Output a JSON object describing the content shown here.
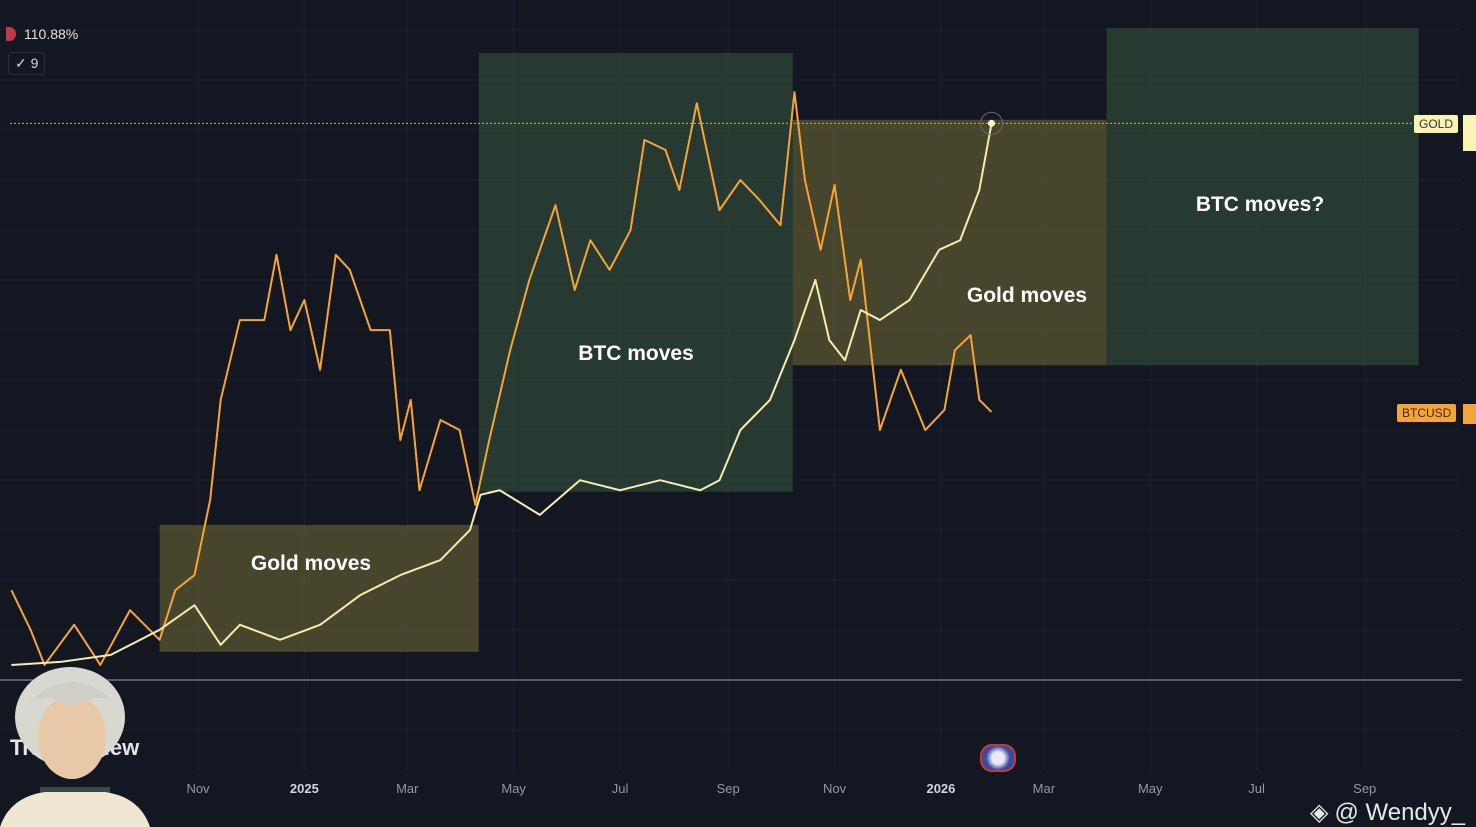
{
  "legend": {
    "percent_change": "110.88%",
    "indicator_count": "9"
  },
  "price_tags": {
    "gold": "GOLD",
    "btc": "BTCUSD"
  },
  "logo_text": "TradingView",
  "watermark": {
    "icon": "binance-logo-icon",
    "handle": "@ Wendyy_"
  },
  "colors": {
    "background": "#131722",
    "gold_line": "#f5ecb0",
    "btc_line": "#f7a437",
    "gold_box": "#5a5530",
    "btc_box": "#2f4a38"
  },
  "chart_data": {
    "type": "line",
    "yunit": "%",
    "grid": true,
    "x_ticks": [
      {
        "label": "Nov",
        "date": "2024-11-01",
        "bold": false
      },
      {
        "label": "2025",
        "date": "2025-01-01",
        "bold": true
      },
      {
        "label": "Mar",
        "date": "2025-03-01",
        "bold": false
      },
      {
        "label": "May",
        "date": "2025-05-01",
        "bold": false
      },
      {
        "label": "Jul",
        "date": "2025-07-01",
        "bold": false
      },
      {
        "label": "Sep",
        "date": "2025-09-01",
        "bold": false
      },
      {
        "label": "Nov",
        "date": "2025-11-01",
        "bold": false
      },
      {
        "label": "2026",
        "date": "2026-01-01",
        "bold": true
      },
      {
        "label": "Mar",
        "date": "2026-03-01",
        "bold": false
      },
      {
        "label": "May",
        "date": "2026-05-01",
        "bold": false
      },
      {
        "label": "Jul",
        "date": "2026-07-01",
        "bold": false
      },
      {
        "label": "Sep",
        "date": "2026-09-01",
        "bold": false
      }
    ],
    "series": [
      {
        "name": "GOLD",
        "color": "#f5ecb0",
        "points": [
          [
            "2024-07-17",
            3.0
          ],
          [
            "2024-08-14",
            3.6
          ],
          [
            "2024-09-12",
            5.0
          ],
          [
            "2024-10-10",
            10.0
          ],
          [
            "2024-10-30",
            14.9
          ],
          [
            "2024-11-14",
            7.0
          ],
          [
            "2024-11-25",
            11.0
          ],
          [
            "2024-12-18",
            8.0
          ],
          [
            "2025-01-10",
            11.0
          ],
          [
            "2025-02-02",
            16.9
          ],
          [
            "2025-02-25",
            20.9
          ],
          [
            "2025-03-20",
            23.9
          ],
          [
            "2025-04-06",
            29.9
          ],
          [
            "2025-04-12",
            36.9
          ],
          [
            "2025-04-23",
            37.8
          ],
          [
            "2025-05-16",
            32.9
          ],
          [
            "2025-06-08",
            39.8
          ],
          [
            "2025-07-01",
            37.8
          ],
          [
            "2025-07-24",
            39.8
          ],
          [
            "2025-08-16",
            37.8
          ],
          [
            "2025-08-27",
            39.8
          ],
          [
            "2025-09-08",
            49.8
          ],
          [
            "2025-09-25",
            55.8
          ],
          [
            "2025-10-09",
            67.7
          ],
          [
            "2025-10-21",
            79.7
          ],
          [
            "2025-10-29",
            67.7
          ],
          [
            "2025-11-07",
            63.7
          ],
          [
            "2025-11-16",
            73.7
          ],
          [
            "2025-11-27",
            71.7
          ],
          [
            "2025-12-14",
            75.7
          ],
          [
            "2025-12-31",
            85.7
          ],
          [
            "2026-01-12",
            87.6
          ],
          [
            "2026-01-23",
            97.6
          ],
          [
            "2026-01-30",
            110.88
          ]
        ]
      },
      {
        "name": "BTCUSD",
        "color": "#f7a437",
        "points": [
          [
            "2024-07-17",
            17.9
          ],
          [
            "2024-07-28",
            10.0
          ],
          [
            "2024-08-05",
            3.0
          ],
          [
            "2024-08-22",
            11.0
          ],
          [
            "2024-09-06",
            3.0
          ],
          [
            "2024-09-23",
            13.9
          ],
          [
            "2024-10-10",
            8.0
          ],
          [
            "2024-10-19",
            17.9
          ],
          [
            "2024-10-30",
            20.9
          ],
          [
            "2024-11-08",
            35.9
          ],
          [
            "2024-11-14",
            55.8
          ],
          [
            "2024-11-25",
            71.7
          ],
          [
            "2024-12-09",
            71.7
          ],
          [
            "2024-12-16",
            84.7
          ],
          [
            "2024-12-24",
            69.7
          ],
          [
            "2025-01-01",
            75.7
          ],
          [
            "2025-01-10",
            61.8
          ],
          [
            "2025-01-19",
            84.7
          ],
          [
            "2025-01-27",
            81.7
          ],
          [
            "2025-02-08",
            69.7
          ],
          [
            "2025-02-19",
            69.7
          ],
          [
            "2025-02-25",
            47.8
          ],
          [
            "2025-03-03",
            55.8
          ],
          [
            "2025-03-08",
            37.8
          ],
          [
            "2025-03-20",
            51.8
          ],
          [
            "2025-03-31",
            49.8
          ],
          [
            "2025-04-09",
            34.9
          ],
          [
            "2025-04-17",
            47.8
          ],
          [
            "2025-04-29",
            65.7
          ],
          [
            "2025-05-10",
            79.7
          ],
          [
            "2025-05-25",
            94.6
          ],
          [
            "2025-06-05",
            77.7
          ],
          [
            "2025-06-14",
            87.6
          ],
          [
            "2025-06-25",
            81.7
          ],
          [
            "2025-07-07",
            89.6
          ],
          [
            "2025-07-15",
            107.6
          ],
          [
            "2025-07-27",
            105.6
          ],
          [
            "2025-08-04",
            97.6
          ],
          [
            "2025-08-14",
            114.9
          ],
          [
            "2025-08-27",
            93.6
          ],
          [
            "2025-09-08",
            99.6
          ],
          [
            "2025-09-19",
            95.6
          ],
          [
            "2025-10-01",
            90.6
          ],
          [
            "2025-10-09",
            117.1
          ],
          [
            "2025-10-15",
            99.6
          ],
          [
            "2025-10-24",
            85.7
          ],
          [
            "2025-11-01",
            98.6
          ],
          [
            "2025-11-10",
            75.7
          ],
          [
            "2025-11-16",
            83.7
          ],
          [
            "2025-11-27",
            49.8
          ],
          [
            "2025-12-09",
            61.8
          ],
          [
            "2025-12-23",
            49.8
          ],
          [
            "2026-01-03",
            53.8
          ],
          [
            "2026-01-09",
            65.7
          ],
          [
            "2026-01-18",
            68.7
          ],
          [
            "2026-01-23",
            55.8
          ],
          [
            "2026-01-30",
            53.4
          ]
        ]
      }
    ],
    "annotations": [
      {
        "label": "Gold moves",
        "kind": "gold",
        "from": "2024-10-10",
        "to": "2025-04-11",
        "top": 30.9,
        "bottom": 5.6
      },
      {
        "label": "BTC moves",
        "kind": "btc",
        "from": "2025-04-11",
        "to": "2025-10-08",
        "top": 124.9,
        "bottom": 37.5
      },
      {
        "label": "Gold moves",
        "kind": "gold",
        "from": "2025-10-08",
        "to": "2026-04-06",
        "top": 111.6,
        "bottom": 62.7
      },
      {
        "label": "BTC moves?",
        "kind": "btc",
        "from": "2026-04-06",
        "to": "2026-10-02",
        "top": 129.9,
        "bottom": 62.7
      }
    ],
    "annotation_label_positions": [
      [
        311,
        563
      ],
      [
        636,
        353
      ],
      [
        1027,
        295
      ],
      [
        1260,
        204
      ]
    ]
  }
}
